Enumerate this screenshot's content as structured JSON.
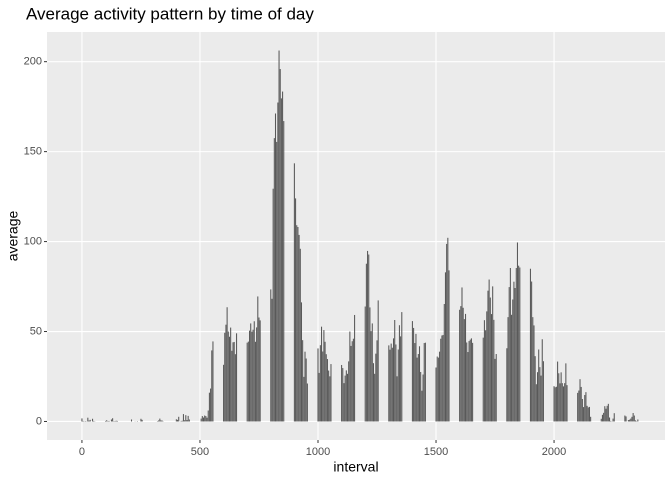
{
  "chart_data": {
    "type": "bar",
    "title": "Average activity pattern by time of day",
    "x_label": "interval",
    "y_label": "average",
    "color": "#595959",
    "grid": true,
    "x": [
      0,
      5,
      10,
      15,
      20,
      25,
      30,
      35,
      40,
      45,
      50,
      55,
      100,
      105,
      110,
      115,
      120,
      125,
      130,
      135,
      140,
      145,
      150,
      155,
      200,
      205,
      210,
      215,
      220,
      225,
      230,
      235,
      240,
      245,
      250,
      255,
      300,
      305,
      310,
      315,
      320,
      325,
      330,
      335,
      340,
      345,
      350,
      355,
      400,
      405,
      410,
      415,
      420,
      425,
      430,
      435,
      440,
      445,
      450,
      455,
      500,
      505,
      510,
      515,
      520,
      525,
      530,
      535,
      540,
      545,
      550,
      555,
      600,
      605,
      610,
      615,
      620,
      625,
      630,
      635,
      640,
      645,
      650,
      655,
      700,
      705,
      710,
      715,
      720,
      725,
      730,
      735,
      740,
      745,
      750,
      755,
      800,
      805,
      810,
      815,
      820,
      825,
      830,
      835,
      840,
      845,
      850,
      855,
      900,
      905,
      910,
      915,
      920,
      925,
      930,
      935,
      940,
      945,
      950,
      955,
      1000,
      1005,
      1010,
      1015,
      1020,
      1025,
      1030,
      1035,
      1040,
      1045,
      1050,
      1055,
      1100,
      1105,
      1110,
      1115,
      1120,
      1125,
      1130,
      1135,
      1140,
      1145,
      1150,
      1155,
      1200,
      1205,
      1210,
      1215,
      1220,
      1225,
      1230,
      1235,
      1240,
      1245,
      1250,
      1255,
      1300,
      1305,
      1310,
      1315,
      1320,
      1325,
      1330,
      1335,
      1340,
      1345,
      1350,
      1355,
      1400,
      1405,
      1410,
      1415,
      1420,
      1425,
      1430,
      1435,
      1440,
      1445,
      1450,
      1455,
      1500,
      1505,
      1510,
      1515,
      1520,
      1525,
      1530,
      1535,
      1540,
      1545,
      1550,
      1555,
      1600,
      1605,
      1610,
      1615,
      1620,
      1625,
      1630,
      1635,
      1640,
      1645,
      1650,
      1655,
      1700,
      1705,
      1710,
      1715,
      1720,
      1725,
      1730,
      1735,
      1740,
      1745,
      1750,
      1755,
      1800,
      1805,
      1810,
      1815,
      1820,
      1825,
      1830,
      1835,
      1840,
      1845,
      1850,
      1855,
      1900,
      1905,
      1910,
      1915,
      1920,
      1925,
      1930,
      1935,
      1940,
      1945,
      1950,
      1955,
      2000,
      2005,
      2010,
      2015,
      2020,
      2025,
      2030,
      2035,
      2040,
      2045,
      2050,
      2055,
      2100,
      2105,
      2110,
      2115,
      2120,
      2125,
      2130,
      2135,
      2140,
      2145,
      2150,
      2155,
      2200,
      2205,
      2210,
      2215,
      2220,
      2225,
      2230,
      2235,
      2240,
      2245,
      2250,
      2255,
      2300,
      2305,
      2310,
      2315,
      2320,
      2325,
      2330,
      2335,
      2340,
      2345,
      2350,
      2355
    ],
    "values": [
      1.7,
      0.3,
      0.1,
      0.2,
      0.1,
      2.1,
      0.5,
      0.9,
      0,
      1.5,
      0.3,
      0.1,
      0.3,
      0.7,
      0.2,
      0.3,
      0,
      1.1,
      1.8,
      0.2,
      0.2,
      0.4,
      0.3,
      0,
      0,
      0,
      1.1,
      0,
      0,
      0.1,
      0,
      0.2,
      0,
      0,
      1.5,
      0.9,
      0,
      0,
      0,
      0,
      0.2,
      0.6,
      1.6,
      0.6,
      0.5,
      0.1,
      0,
      0,
      1.2,
      0.9,
      2.6,
      0,
      0.3,
      0.4,
      4.1,
      0.7,
      3.5,
      0.8,
      3.1,
      1.1,
      0,
      1.6,
      3,
      2.2,
      3.3,
      3,
      2.1,
      6.1,
      16,
      18.3,
      39.5,
      44.5,
      31.5,
      49.3,
      53.8,
      63.5,
      50,
      47.1,
      52.2,
      39.3,
      44,
      44.2,
      37.4,
      49,
      43.8,
      44.4,
      50.5,
      54.5,
      49.9,
      51,
      55.7,
      44.3,
      52.3,
      69.5,
      57.8,
      56.2,
      73.4,
      68.2,
      129.4,
      157.5,
      171.2,
      155.4,
      177.3,
      206.2,
      195.9,
      179.6,
      183.4,
      167,
      143.5,
      124,
      109.1,
      108.1,
      103.7,
      96,
      66.2,
      45.2,
      24.8,
      38.8,
      35,
      21.1,
      40.6,
      27,
      42.4,
      52.7,
      38.9,
      50.8,
      44.3,
      37.4,
      34.7,
      28.3,
      25.1,
      31.9,
      31.4,
      29.7,
      21.3,
      25.5,
      28.4,
      26.5,
      33.4,
      50,
      42,
      44.6,
      46,
      59.2,
      63.9,
      87.7,
      94.8,
      92.8,
      63.4,
      50.2,
      54.5,
      32.4,
      26.5,
      37.7,
      45.1,
      67.3,
      42.3,
      39.9,
      43.3,
      41,
      46.2,
      56.4,
      42.8,
      25.1,
      40,
      53.5,
      47.3,
      60.8,
      55.8,
      52,
      43.6,
      48.7,
      35.5,
      37.5,
      41.8,
      27.5,
      17.1,
      26.1,
      43.6,
      43.8,
      30,
      36.1,
      35.5,
      38.8,
      46,
      47.8,
      48.1,
      65.3,
      82.9,
      98.7,
      102.1,
      84,
      62.1,
      64.1,
      74.5,
      63.2,
      56.9,
      59.8,
      43.9,
      38.6,
      44.7,
      45.5,
      46.2,
      43.7,
      46.6,
      56.3,
      50.7,
      61.2,
      72.7,
      78.9,
      68.9,
      59.7,
      75.1,
      56.5,
      34.8,
      37.5,
      40.7,
      58,
      74.7,
      85.3,
      59.3,
      67.8,
      77.7,
      74.2,
      85.3,
      99.5,
      86.6,
      85.6,
      84.9,
      77.8,
      58,
      53.4,
      36.3,
      20.7,
      27.4,
      40,
      30.2,
      25.5,
      45.7,
      33.5,
      19.6,
      19,
      19.3,
      33.3,
      26.8,
      21.2,
      27.3,
      21.3,
      19.5,
      21.3,
      32.3,
      20.2,
      15.9,
      17.2,
      23.5,
      19.2,
      12.5,
      8,
      14.7,
      16.3,
      8.7,
      7.8,
      8.1,
      2.6,
      1.5,
      3.7,
      4.8,
      8.5,
      7.1,
      8.7,
      9.8,
      2.2,
      0.3,
      0.1,
      1.6,
      4.6,
      3.3,
      2.8,
      0,
      0.8,
      1,
      1.6,
      2.6,
      4.7,
      3.3,
      0.6,
      0.2,
      1.1
    ],
    "xlim": [
      -148,
      2470
    ],
    "ylim": [
      -10.3,
      216.5
    ],
    "xticks": [
      0,
      500,
      1000,
      1500,
      2000
    ],
    "yticks": [
      0,
      50,
      100,
      150,
      200
    ]
  }
}
